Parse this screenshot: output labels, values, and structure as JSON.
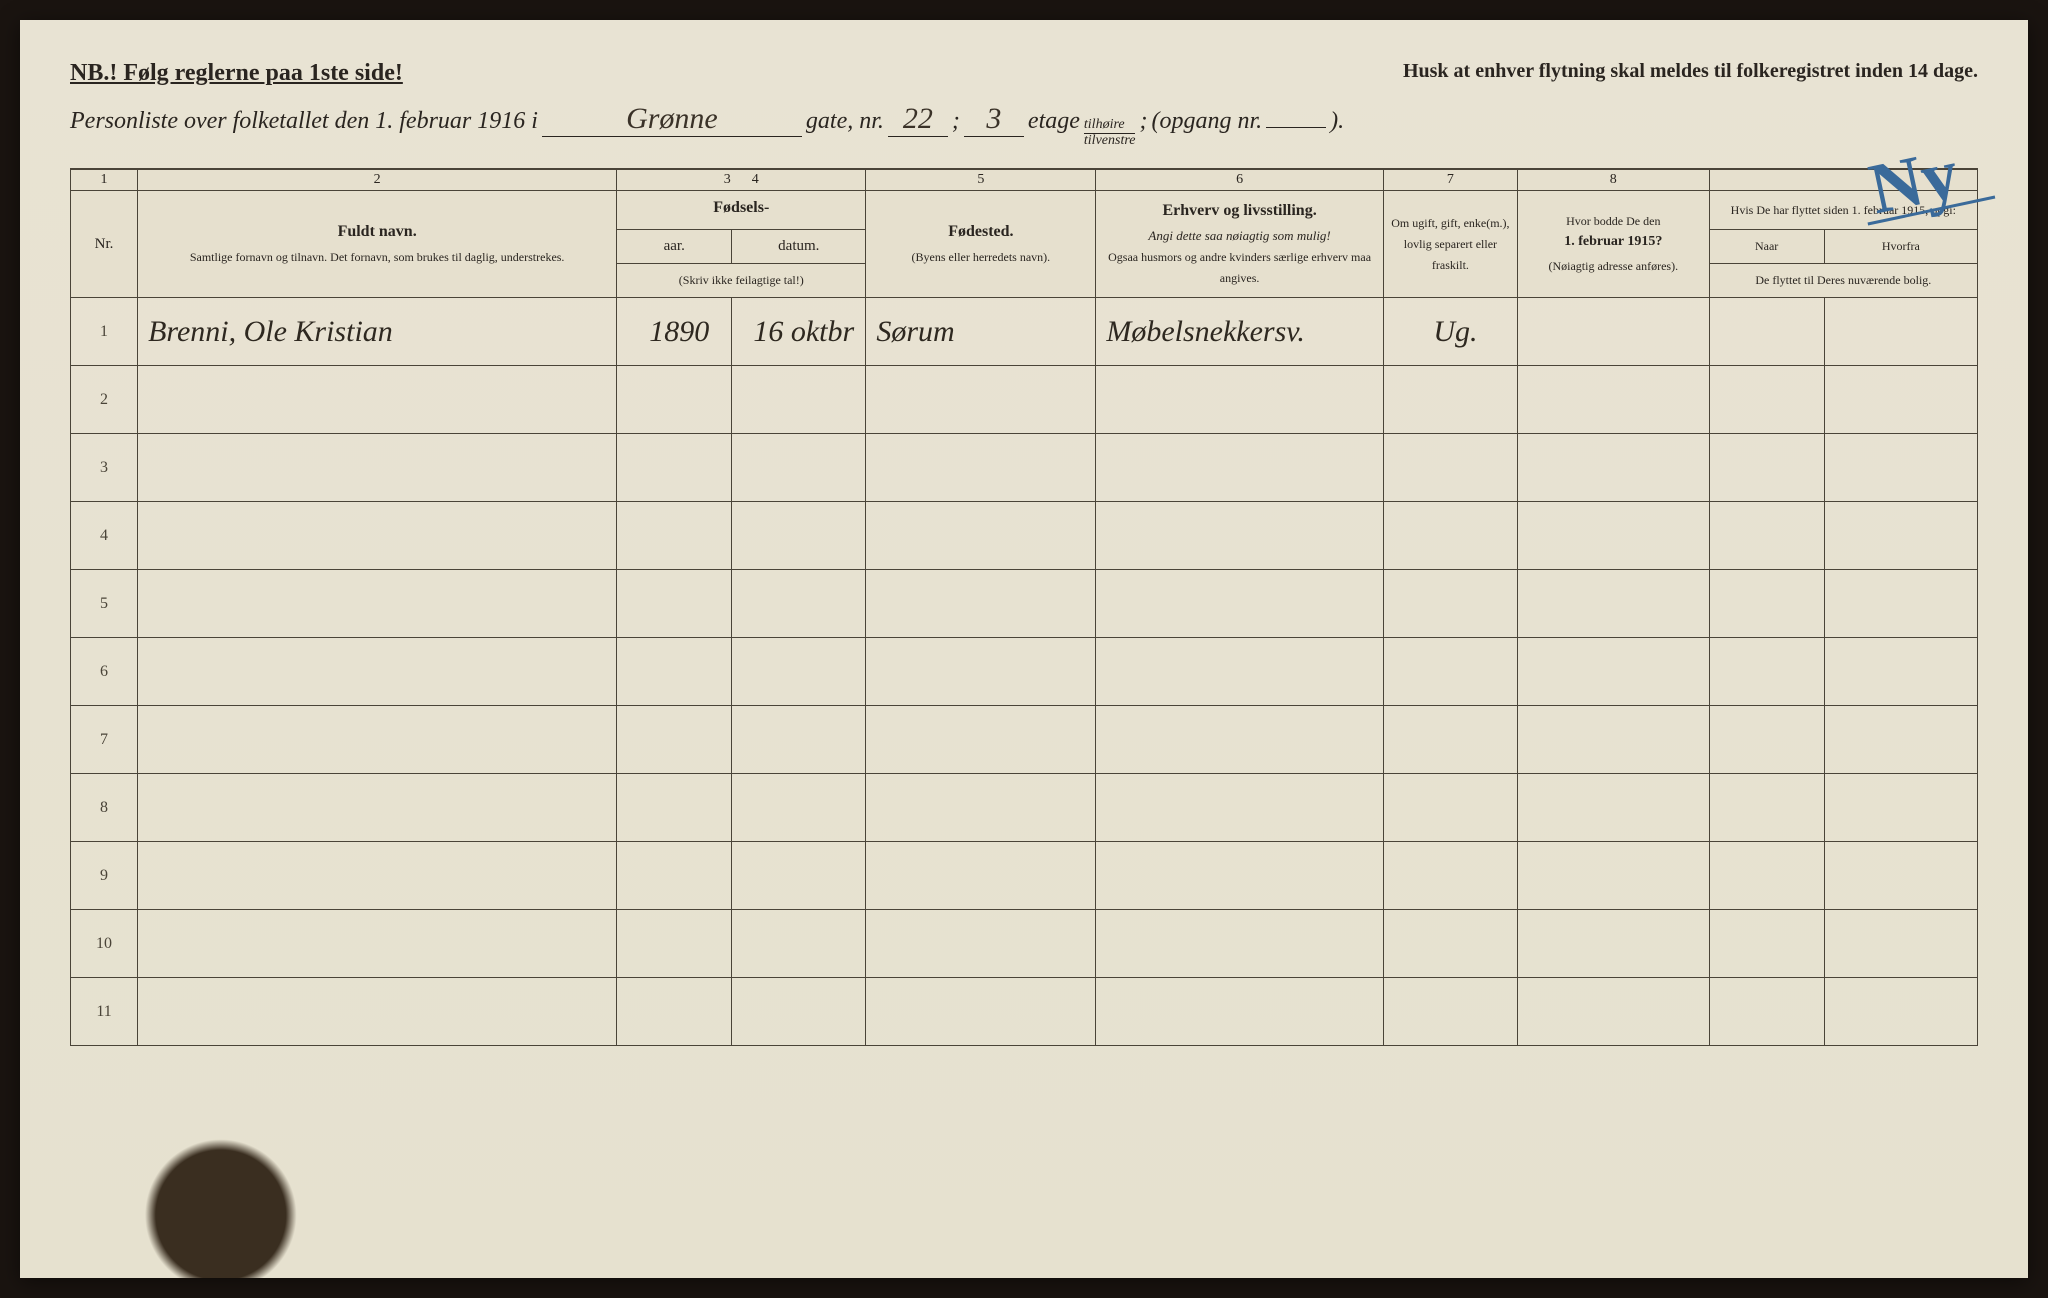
{
  "header": {
    "nb": "NB.! Følg reglerne paa 1ste side!",
    "husk": "Husk at enhver flytning skal meldes til folkeregistret inden 14 dage.",
    "personliste_prefix": "Personliste over folketallet den 1. februar 1916 i",
    "gate_value": "Grønne",
    "gate_label": "gate, nr.",
    "nr_value": "22",
    "semicolon": ";",
    "etage_value": "3",
    "etage_label": "etage",
    "fraction_top": "tilhøire",
    "fraction_bottom": "tilvenstre",
    "fraction_semicolon": ";",
    "opgang_label": "(opgang nr.",
    "opgang_value": "",
    "closing": ")."
  },
  "colnums": [
    "1",
    "2",
    "3",
    "4",
    "5",
    "6",
    "7",
    "8"
  ],
  "columns": {
    "nr": "Nr.",
    "navn_title": "Fuldt navn.",
    "navn_sub": "Samtlige fornavn og tilnavn. Det fornavn, som brukes til daglig, understrekes.",
    "fodsels_title": "Fødsels-",
    "aar": "aar.",
    "datum": "datum.",
    "fodsels_note": "(Skriv ikke feilagtige tal!)",
    "fodested_title": "Fødested.",
    "fodested_sub": "(Byens eller herredets navn).",
    "erhverv_title": "Erhverv og livsstilling.",
    "erhverv_sub1": "Angi dette saa nøiagtig som mulig!",
    "erhverv_sub2": "Ogsaa husmors og andre kvinders særlige erhverv maa angives.",
    "ugift": "Om ugift, gift, enke(m.), lovlig separert eller fraskilt.",
    "bodde_title": "Hvor bodde De den",
    "bodde_date": "1. februar 1915?",
    "bodde_sub": "(Nøiagtig adresse anføres).",
    "flyt_title": "Hvis De har flyttet siden 1. februar 1915, opgi:",
    "naar": "Naar",
    "hvorfra": "Hvorfra",
    "flyt_sub": "De flyttet til Deres nuværende bolig."
  },
  "rows": [
    {
      "nr": "1",
      "navn": "Brenni, Ole Kristian",
      "aar": "1890",
      "datum": "16 oktbr",
      "fodested": "Sørum",
      "erhverv": "Møbelsnekkersv.",
      "ugift": "Ug.",
      "bodde": "",
      "naar": "",
      "hvorfra": ""
    },
    {
      "nr": "2",
      "navn": "",
      "aar": "",
      "datum": "",
      "fodested": "",
      "erhverv": "",
      "ugift": "",
      "bodde": "",
      "naar": "",
      "hvorfra": ""
    },
    {
      "nr": "3",
      "navn": "",
      "aar": "",
      "datum": "",
      "fodested": "",
      "erhverv": "",
      "ugift": "",
      "bodde": "",
      "naar": "",
      "hvorfra": ""
    },
    {
      "nr": "4",
      "navn": "",
      "aar": "",
      "datum": "",
      "fodested": "",
      "erhverv": "",
      "ugift": "",
      "bodde": "",
      "naar": "",
      "hvorfra": ""
    },
    {
      "nr": "5",
      "navn": "",
      "aar": "",
      "datum": "",
      "fodested": "",
      "erhverv": "",
      "ugift": "",
      "bodde": "",
      "naar": "",
      "hvorfra": ""
    },
    {
      "nr": "6",
      "navn": "",
      "aar": "",
      "datum": "",
      "fodested": "",
      "erhverv": "",
      "ugift": "",
      "bodde": "",
      "naar": "",
      "hvorfra": ""
    },
    {
      "nr": "7",
      "navn": "",
      "aar": "",
      "datum": "",
      "fodested": "",
      "erhverv": "",
      "ugift": "",
      "bodde": "",
      "naar": "",
      "hvorfra": ""
    },
    {
      "nr": "8",
      "navn": "",
      "aar": "",
      "datum": "",
      "fodested": "",
      "erhverv": "",
      "ugift": "",
      "bodde": "",
      "naar": "",
      "hvorfra": ""
    },
    {
      "nr": "9",
      "navn": "",
      "aar": "",
      "datum": "",
      "fodested": "",
      "erhverv": "",
      "ugift": "",
      "bodde": "",
      "naar": "",
      "hvorfra": ""
    },
    {
      "nr": "10",
      "navn": "",
      "aar": "",
      "datum": "",
      "fodested": "",
      "erhverv": "",
      "ugift": "",
      "bodde": "",
      "naar": "",
      "hvorfra": ""
    },
    {
      "nr": "11",
      "navn": "",
      "aar": "",
      "datum": "",
      "fodested": "",
      "erhverv": "",
      "ugift": "",
      "bodde": "",
      "naar": "",
      "hvorfra": ""
    }
  ],
  "annotation": {
    "ny": "Ny"
  },
  "colors": {
    "paper": "#e8e3d3",
    "ink": "#2a2520",
    "handwriting": "#2e2820",
    "blue_pencil": "#3a6a9a",
    "border": "#4a4438"
  }
}
